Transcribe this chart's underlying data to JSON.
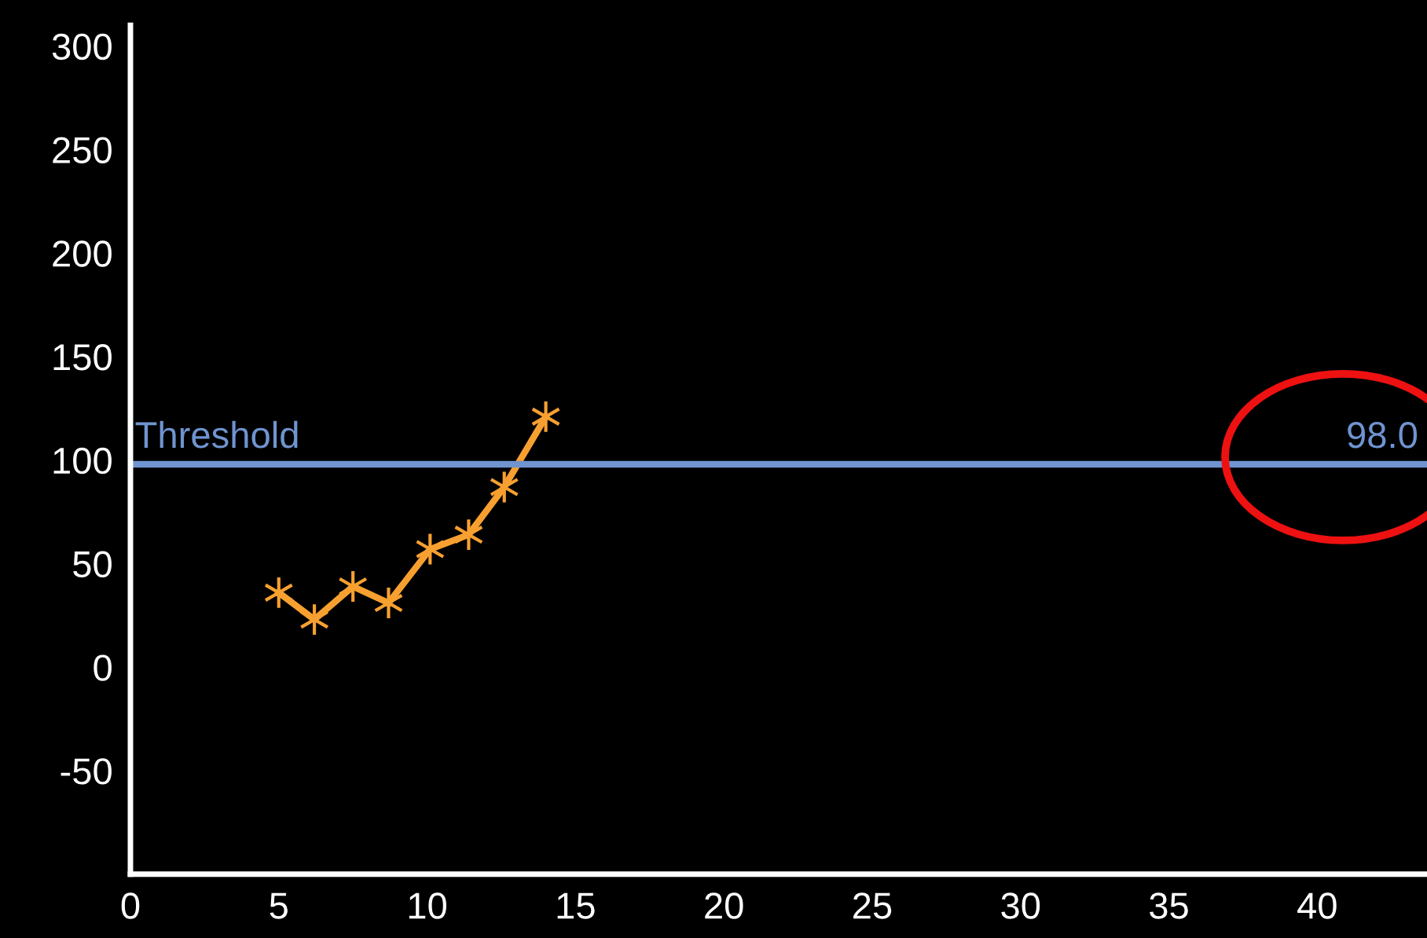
{
  "chart_data": {
    "type": "line",
    "x": [
      5,
      6.2,
      7.5,
      8.7,
      10.1,
      11.4,
      12.6,
      14.0
    ],
    "series": [
      {
        "color": "#f7a030",
        "values": [
          36,
          23,
          39,
          31,
          57,
          64,
          87,
          121
        ]
      }
    ],
    "xlim": [
      0,
      43.7
    ],
    "ylim": [
      -100,
      310
    ],
    "xticks": [
      0,
      5,
      10,
      15,
      20,
      25,
      30,
      35,
      40
    ],
    "yticks": [
      -50,
      0,
      50,
      100,
      150,
      200,
      250,
      300
    ],
    "ref_lines": [
      {
        "axis": "y",
        "value": 98,
        "label": "Threshold",
        "color": "#6f94d0"
      }
    ],
    "annotations": [
      "98.0"
    ],
    "marker": "cross",
    "line_style": "solid",
    "grid": false
  }
}
